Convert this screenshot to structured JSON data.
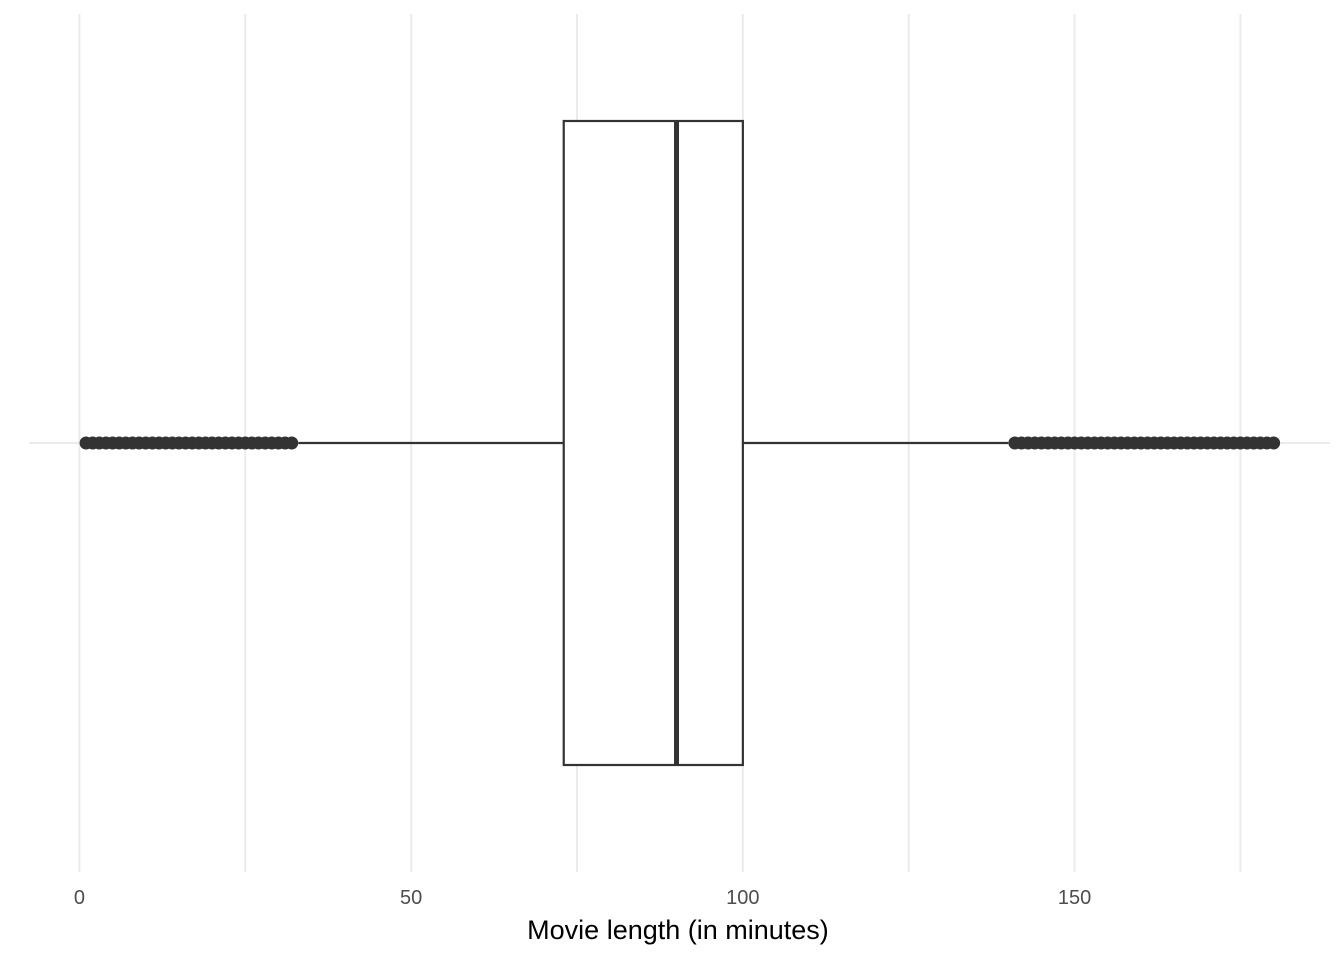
{
  "chart_data": {
    "type": "boxplot",
    "title": "",
    "xlabel": "Movie length (in minutes)",
    "ylabel": "",
    "orientation": "horizontal",
    "xlim": [
      -7.6,
      188.5
    ],
    "x_ticks": [
      0,
      50,
      100,
      150
    ],
    "x_tick_labels": [
      "0",
      "50",
      "100",
      "150"
    ],
    "x_minor_ticks": [
      25,
      75,
      125,
      175
    ],
    "grid": "vertical major and minor",
    "box": {
      "lower_whisker": 33,
      "q1": 73,
      "median": 90,
      "q3": 100,
      "upper_whisker": 140
    },
    "outlier_ranges": [
      [
        1,
        32
      ],
      [
        141,
        180
      ]
    ],
    "colors": {
      "grid": "#ebebeb",
      "box_stroke": "#333333",
      "points": "#333333",
      "box_fill": "#ffffff"
    }
  }
}
